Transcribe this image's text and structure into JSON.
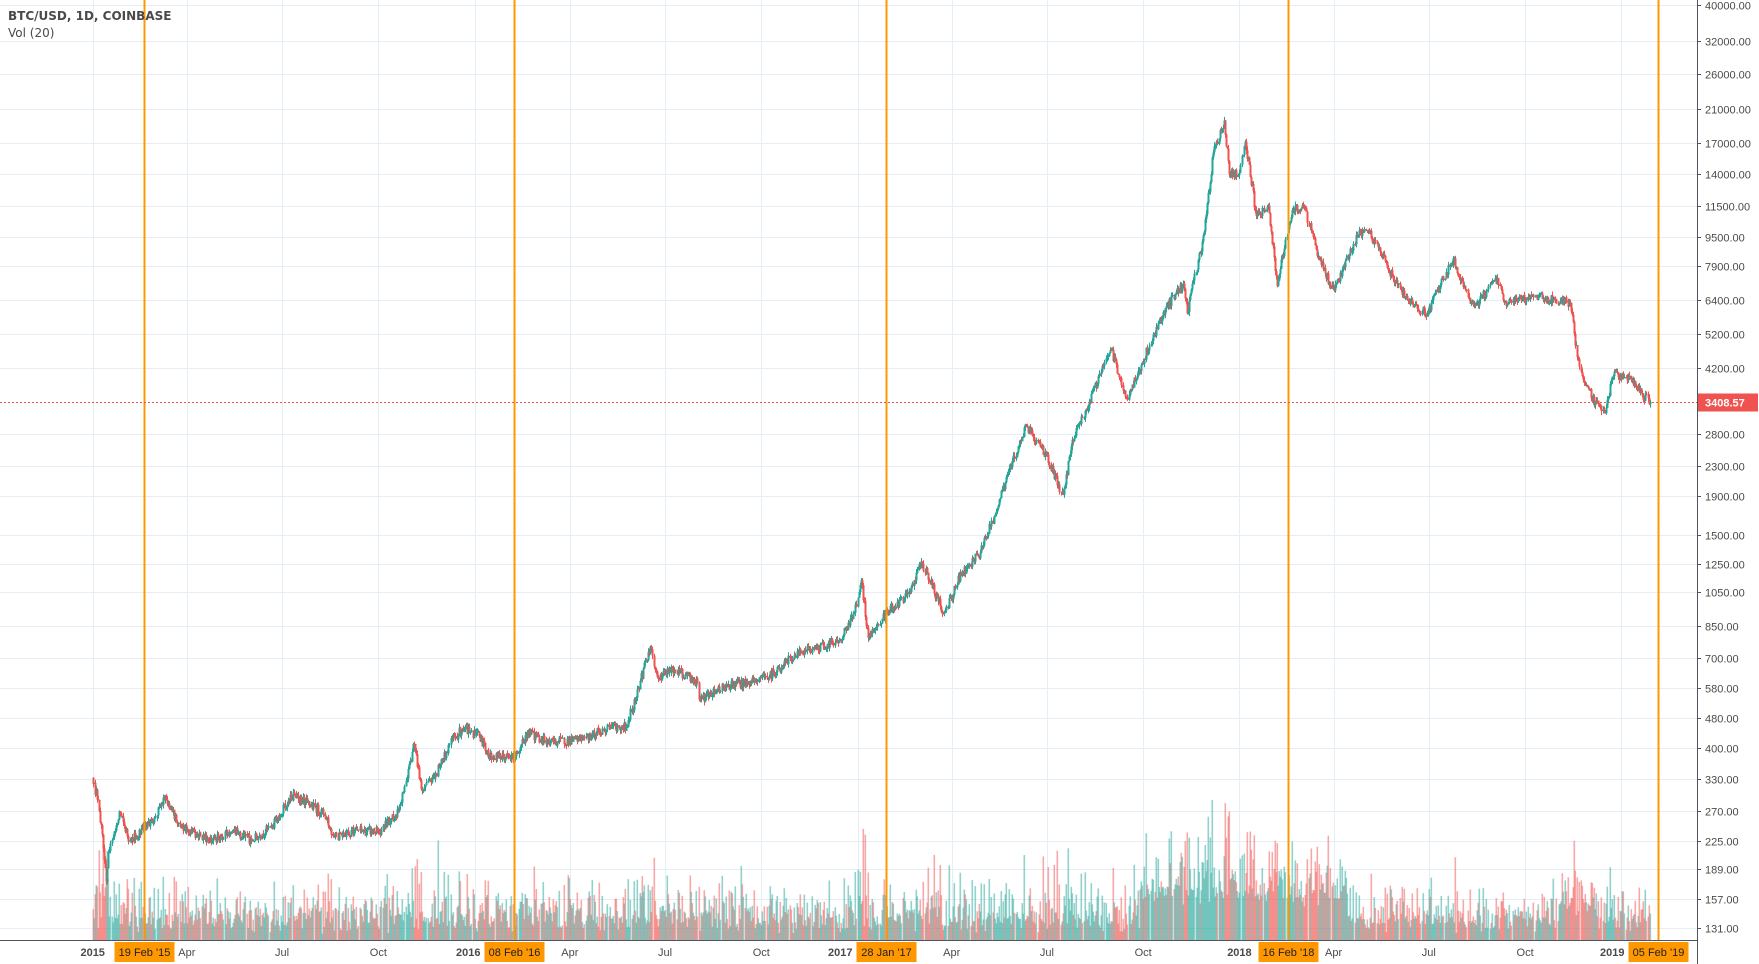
{
  "legend": {
    "symbol": "BTC/USD, 1D, COINBASE",
    "volume": "Vol (20)"
  },
  "colors": {
    "up": "#26a69a",
    "down": "#ef5350",
    "marker": "#ff9800",
    "grid": "#e6eef5",
    "last_price": "#ef5350"
  },
  "chart_data": {
    "type": "candlestick",
    "title": "BTC/USD, 1D, COINBASE",
    "indicator": "Vol (20)",
    "y_scale": "log",
    "ylim": [
      131,
      40000
    ],
    "xlim": [
      "2015-01-01",
      "2019-02-10"
    ],
    "grid": true,
    "y_ticks": [
      "40000.00",
      "32000.00",
      "26000.00",
      "21000.00",
      "17000.00",
      "14000.00",
      "11500.00",
      "9500.00",
      "7900.00",
      "6400.00",
      "5200.00",
      "4200.00",
      "2800.00",
      "2300.00",
      "1900.00",
      "1500.00",
      "1250.00",
      "1050.00",
      "850.00",
      "700.00",
      "580.00",
      "480.00",
      "400.00",
      "330.00",
      "270.00",
      "225.00",
      "189.00",
      "157.00",
      "131.00"
    ],
    "x_ticks": [
      {
        "date": "2015-01-01",
        "label": "2015"
      },
      {
        "date": "2015-04-01",
        "label": "Apr"
      },
      {
        "date": "2015-07-01",
        "label": "Jul"
      },
      {
        "date": "2015-10-01",
        "label": "Oct"
      },
      {
        "date": "2016-01-01",
        "label": "2016"
      },
      {
        "date": "2016-04-01",
        "label": "Apr"
      },
      {
        "date": "2016-07-01",
        "label": "Jul"
      },
      {
        "date": "2016-10-01",
        "label": "Oct"
      },
      {
        "date": "2017-01-01",
        "label": "2017"
      },
      {
        "date": "2017-04-01",
        "label": "Apr"
      },
      {
        "date": "2017-07-01",
        "label": "Jul"
      },
      {
        "date": "2017-10-01",
        "label": "Oct"
      },
      {
        "date": "2018-01-01",
        "label": "2018"
      },
      {
        "date": "2018-04-01",
        "label": "Apr"
      },
      {
        "date": "2018-07-01",
        "label": "Jul"
      },
      {
        "date": "2018-10-01",
        "label": "Oct"
      },
      {
        "date": "2019-01-01",
        "label": "2019"
      }
    ],
    "last_price": {
      "value": 3408.57,
      "label": "3408.57"
    },
    "vertical_markers": [
      {
        "date": "2015-02-19",
        "label": "19 Feb '15"
      },
      {
        "date": "2016-02-08",
        "label": "08 Feb '16"
      },
      {
        "date": "2017-01-28",
        "label": "28 Jan '17"
      },
      {
        "date": "2018-02-16",
        "label": "16 Feb '18"
      },
      {
        "date": "2019-02-05",
        "label": "05 Feb '19"
      }
    ],
    "approx_closes": [
      [
        "2015-01-01",
        320
      ],
      [
        "2015-01-06",
        290
      ],
      [
        "2015-01-13",
        190
      ],
      [
        "2015-01-14",
        175
      ],
      [
        "2015-01-16",
        210
      ],
      [
        "2015-01-26",
        270
      ],
      [
        "2015-02-05",
        225
      ],
      [
        "2015-02-19",
        245
      ],
      [
        "2015-03-01",
        260
      ],
      [
        "2015-03-11",
        295
      ],
      [
        "2015-03-25",
        245
      ],
      [
        "2015-04-10",
        235
      ],
      [
        "2015-04-25",
        225
      ],
      [
        "2015-05-15",
        240
      ],
      [
        "2015-06-01",
        225
      ],
      [
        "2015-06-20",
        245
      ],
      [
        "2015-07-12",
        300
      ],
      [
        "2015-07-25",
        285
      ],
      [
        "2015-08-10",
        265
      ],
      [
        "2015-08-20",
        230
      ],
      [
        "2015-09-10",
        240
      ],
      [
        "2015-10-01",
        238
      ],
      [
        "2015-10-20",
        270
      ],
      [
        "2015-11-04",
        410
      ],
      [
        "2015-11-11",
        310
      ],
      [
        "2015-11-25",
        340
      ],
      [
        "2015-12-10",
        420
      ],
      [
        "2015-12-20",
        450
      ],
      [
        "2016-01-05",
        430
      ],
      [
        "2016-01-15",
        380
      ],
      [
        "2016-02-08",
        375
      ],
      [
        "2016-02-20",
        440
      ],
      [
        "2016-03-10",
        415
      ],
      [
        "2016-04-10",
        420
      ],
      [
        "2016-05-10",
        455
      ],
      [
        "2016-05-25",
        455
      ],
      [
        "2016-06-05",
        580
      ],
      [
        "2016-06-17",
        750
      ],
      [
        "2016-06-23",
        620
      ],
      [
        "2016-07-10",
        650
      ],
      [
        "2016-08-01",
        600
      ],
      [
        "2016-08-02",
        540
      ],
      [
        "2016-08-20",
        575
      ],
      [
        "2016-09-20",
        605
      ],
      [
        "2016-10-15",
        640
      ],
      [
        "2016-11-01",
        710
      ],
      [
        "2016-11-20",
        740
      ],
      [
        "2016-12-15",
        780
      ],
      [
        "2016-12-31",
        960
      ],
      [
        "2017-01-04",
        1130
      ],
      [
        "2017-01-11",
        790
      ],
      [
        "2017-01-28",
        920
      ],
      [
        "2017-02-20",
        1050
      ],
      [
        "2017-03-03",
        1270
      ],
      [
        "2017-03-24",
        920
      ],
      [
        "2017-04-10",
        1180
      ],
      [
        "2017-04-28",
        1340
      ],
      [
        "2017-05-12",
        1700
      ],
      [
        "2017-05-25",
        2200
      ],
      [
        "2017-06-11",
        2950
      ],
      [
        "2017-06-30",
        2450
      ],
      [
        "2017-07-16",
        1920
      ],
      [
        "2017-07-25",
        2700
      ],
      [
        "2017-08-10",
        3400
      ],
      [
        "2017-08-31",
        4700
      ],
      [
        "2017-09-15",
        3500
      ],
      [
        "2017-09-30",
        4350
      ],
      [
        "2017-10-20",
        5950
      ],
      [
        "2017-11-08",
        7100
      ],
      [
        "2017-11-12",
        5900
      ],
      [
        "2017-11-28",
        9800
      ],
      [
        "2017-12-07",
        16000
      ],
      [
        "2017-12-17",
        19500
      ],
      [
        "2017-12-22",
        14000
      ],
      [
        "2017-12-31",
        13900
      ],
      [
        "2018-01-06",
        17100
      ],
      [
        "2018-01-17",
        10800
      ],
      [
        "2018-01-28",
        11500
      ],
      [
        "2018-02-06",
        7000
      ],
      [
        "2018-02-20",
        11200
      ],
      [
        "2018-03-04",
        11400
      ],
      [
        "2018-03-18",
        8200
      ],
      [
        "2018-04-01",
        6800
      ],
      [
        "2018-04-24",
        9600
      ],
      [
        "2018-05-05",
        9800
      ],
      [
        "2018-05-28",
        7300
      ],
      [
        "2018-06-12",
        6300
      ],
      [
        "2018-06-29",
        5900
      ],
      [
        "2018-07-24",
        8300
      ],
      [
        "2018-08-10",
        6300
      ],
      [
        "2018-08-14",
        6200
      ],
      [
        "2018-09-04",
        7350
      ],
      [
        "2018-09-11",
        6300
      ],
      [
        "2018-10-10",
        6550
      ],
      [
        "2018-11-13",
        6300
      ],
      [
        "2018-11-20",
        4500
      ],
      [
        "2018-11-25",
        3900
      ],
      [
        "2018-12-07",
        3400
      ],
      [
        "2018-12-15",
        3200
      ],
      [
        "2018-12-24",
        4000
      ],
      [
        "2019-01-09",
        4000
      ],
      [
        "2019-01-20",
        3600
      ],
      [
        "2019-01-28",
        3408.57
      ]
    ]
  }
}
